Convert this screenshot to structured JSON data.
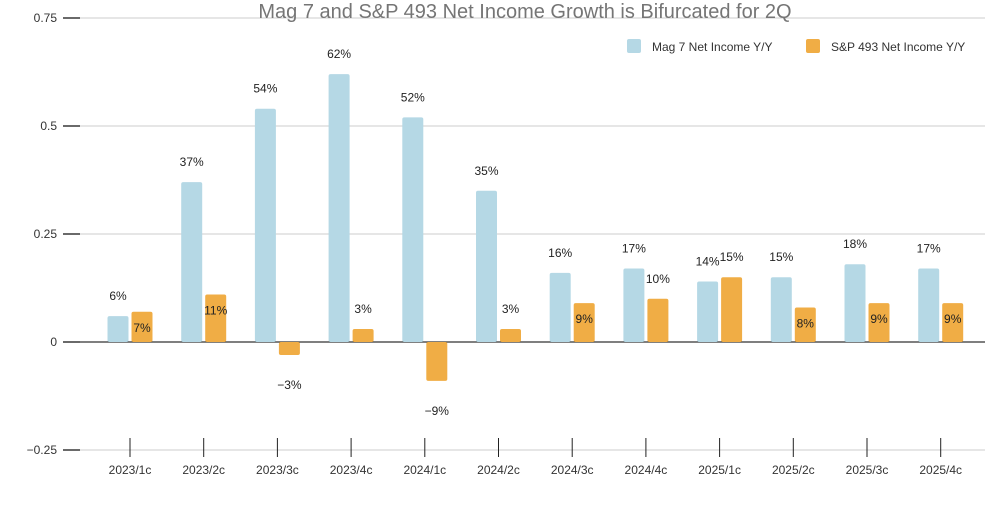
{
  "chart_data": {
    "type": "bar",
    "title": "Mag 7 and S&P 493 Net Income Growth is Bifurcated for 2Q",
    "xlabel": "",
    "ylabel": "",
    "ylim": [
      -0.25,
      0.75
    ],
    "yticks": [
      -0.25,
      0,
      0.25,
      0.5,
      0.75
    ],
    "ytick_labels": [
      "−0.25",
      "0",
      "0.25",
      "0.5",
      "0.75"
    ],
    "grid": true,
    "legend_position": "top-right",
    "categories": [
      "2023/1c",
      "2023/2c",
      "2023/3c",
      "2023/4c",
      "2024/1c",
      "2024/2c",
      "2024/3c",
      "2024/4c",
      "2025/1c",
      "2025/2c",
      "2025/3c",
      "2025/4c"
    ],
    "series": [
      {
        "name": "Mag 7 Net Income Y/Y",
        "color": "#b5d8e5",
        "values": [
          0.06,
          0.37,
          0.54,
          0.62,
          0.52,
          0.35,
          0.16,
          0.17,
          0.14,
          0.15,
          0.18,
          0.17
        ],
        "labels": [
          "6%",
          "37%",
          "54%",
          "62%",
          "52%",
          "35%",
          "16%",
          "17%",
          "14%",
          "15%",
          "18%",
          "17%"
        ]
      },
      {
        "name": "S&P 493 Net Income Y/Y",
        "color": "#f0ad45",
        "values": [
          0.07,
          0.11,
          -0.03,
          0.03,
          -0.09,
          0.03,
          0.09,
          0.1,
          0.15,
          0.08,
          0.09,
          0.09
        ],
        "labels": [
          "7%",
          "11%",
          "−3%",
          "3%",
          "−9%",
          "3%",
          "9%",
          "10%",
          "15%",
          "8%",
          "9%",
          "9%"
        ]
      }
    ]
  }
}
